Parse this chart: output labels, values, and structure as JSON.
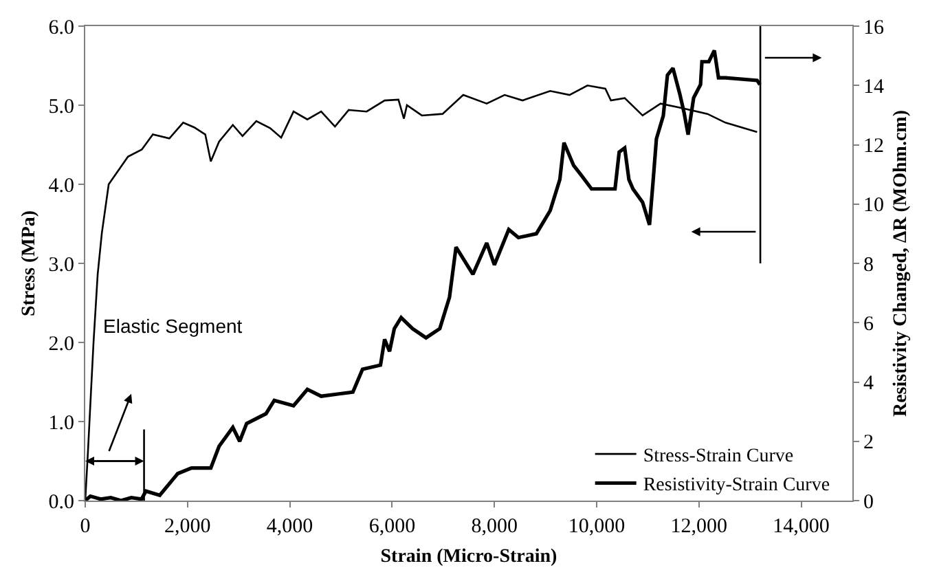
{
  "chart_data": {
    "type": "line",
    "xlabel": "Strain (Micro-Strain)",
    "ylabel": "Stress (MPa)",
    "y2label": "Resistivity Changed, ΔR (MOhm.cm)",
    "xlim": [
      0,
      15000
    ],
    "xticks": [
      {
        "value": 0,
        "label": "0"
      },
      {
        "value": 2000,
        "label": "2,000"
      },
      {
        "value": 4000,
        "label": "4,000"
      },
      {
        "value": 6000,
        "label": "6,000"
      },
      {
        "value": 8000,
        "label": "8,000"
      },
      {
        "value": 10000,
        "label": "10,000"
      },
      {
        "value": 12000,
        "label": "12,000"
      },
      {
        "value": 14000,
        "label": "14,000"
      }
    ],
    "ylim": [
      0,
      6
    ],
    "yticks": [
      {
        "value": 0,
        "label": "0.0"
      },
      {
        "value": 1,
        "label": "1.0"
      },
      {
        "value": 2,
        "label": "2.0"
      },
      {
        "value": 3,
        "label": "3.0"
      },
      {
        "value": 4,
        "label": "4.0"
      },
      {
        "value": 5,
        "label": "5.0"
      },
      {
        "value": 6,
        "label": "6.0"
      }
    ],
    "y2lim": [
      0,
      16
    ],
    "y2ticks": [
      0,
      2,
      4,
      6,
      8,
      10,
      12,
      14,
      16
    ],
    "legend": "bottom right",
    "marker": "none",
    "line_style": "solid",
    "annotations": [
      "Elastic Segment"
    ],
    "ref_lines": [
      {
        "axis": "x",
        "value": 1150,
        "color": "#000000"
      },
      {
        "axis": "x",
        "value": 13200,
        "color": "#000000"
      }
    ],
    "series": [
      {
        "name": "Stress-Strain Curve",
        "color": "#000000",
        "x": [
          0,
          54,
          108,
          162,
          243,
          324,
          459,
          836,
          1106,
          1322,
          1645,
          1915,
          2131,
          2347,
          2455,
          2617,
          2886,
          3075,
          3345,
          3615,
          3831,
          4073,
          4343,
          4613,
          4883,
          5152,
          5503,
          5854,
          6124,
          6231,
          6290,
          6582,
          6987,
          7391,
          7850,
          8200,
          8551,
          9091,
          9469,
          9819,
          10170,
          10278,
          10548,
          10898,
          11249,
          11627,
          12166,
          12517,
          13137
        ],
        "values": [
          0,
          0.63,
          1.32,
          2.0,
          2.86,
          3.38,
          4.0,
          4.35,
          4.44,
          4.63,
          4.58,
          4.78,
          4.72,
          4.63,
          4.29,
          4.54,
          4.75,
          4.61,
          4.8,
          4.71,
          4.59,
          4.92,
          4.82,
          4.92,
          4.73,
          4.94,
          4.92,
          5.06,
          5.07,
          4.83,
          5.0,
          4.87,
          4.89,
          5.13,
          5.02,
          5.13,
          5.06,
          5.18,
          5.13,
          5.25,
          5.21,
          5.06,
          5.09,
          4.87,
          5.02,
          4.97,
          4.89,
          4.78,
          4.66
        ]
      },
      {
        "name": "Resistivity-Strain Curve",
        "color": "#000000",
        "axis": "y2",
        "x": [
          0,
          100,
          300,
          500,
          700,
          900,
          1100,
          1187,
          1457,
          1807,
          2077,
          2455,
          2617,
          2886,
          3020,
          3156,
          3534,
          3696,
          4073,
          4343,
          4613,
          4964,
          5233,
          5422,
          5773,
          5854,
          5950,
          6043,
          6177,
          6400,
          6663,
          6933,
          7122,
          7250,
          7580,
          7850,
          8000,
          8281,
          8470,
          8821,
          9091,
          9280,
          9361,
          9550,
          9700,
          9900,
          10359,
          10440,
          10548,
          10630,
          10710,
          10898,
          11033,
          11100,
          11168,
          11303,
          11384,
          11492,
          11627,
          11707,
          11788,
          11896,
          12031,
          12058,
          12193,
          12301,
          12382,
          12517,
          13137,
          13191
        ],
        "values": [
          0,
          0.15,
          0.05,
          0.1,
          0,
          0.1,
          0.05,
          0.32,
          0.18,
          0.91,
          1.1,
          1.1,
          1.83,
          2.47,
          2.0,
          2.6,
          2.93,
          3.38,
          3.2,
          3.75,
          3.52,
          3.6,
          3.66,
          4.43,
          4.57,
          5.44,
          5.03,
          5.8,
          6.17,
          5.8,
          5.49,
          5.8,
          6.86,
          8.55,
          7.63,
          8.69,
          7.95,
          9.14,
          8.87,
          9.0,
          9.78,
          10.83,
          12.07,
          11.3,
          10.97,
          10.51,
          10.51,
          11.75,
          11.89,
          10.83,
          10.51,
          10.06,
          9.3,
          10.7,
          12.2,
          12.98,
          14.35,
          14.58,
          13.7,
          13.1,
          12.34,
          13.58,
          14.03,
          14.8,
          14.8,
          15.18,
          14.26,
          14.26,
          14.17,
          14.03
        ]
      }
    ]
  }
}
